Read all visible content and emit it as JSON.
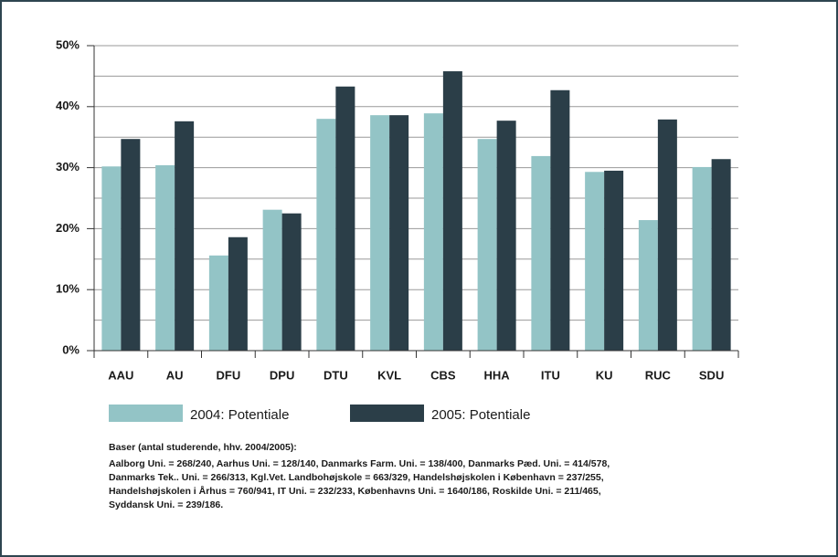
{
  "chart_data": {
    "type": "bar",
    "categories": [
      "AAU",
      "AU",
      "DFU",
      "DPU",
      "DTU",
      "KVL",
      "CBS",
      "HHA",
      "ITU",
      "KU",
      "RUC",
      "SDU"
    ],
    "series": [
      {
        "name": "2004: Potentiale",
        "color": "#93c4c6",
        "values": [
          30.2,
          30.4,
          15.6,
          23.1,
          38.0,
          38.6,
          38.9,
          34.7,
          31.9,
          29.3,
          21.4,
          30.1
        ]
      },
      {
        "name": "2005: Potentiale",
        "color": "#2b3e48",
        "values": [
          34.7,
          37.6,
          18.6,
          22.5,
          43.3,
          38.6,
          45.8,
          37.7,
          42.7,
          29.5,
          37.9,
          31.4
        ]
      }
    ],
    "ylim": [
      0,
      50
    ],
    "yticks": [
      {
        "value": 0,
        "label": "0%"
      },
      {
        "value": 10,
        "label": "10%"
      },
      {
        "value": 20,
        "label": "20%"
      },
      {
        "value": 30,
        "label": "30%"
      },
      {
        "value": 40,
        "label": "40%"
      },
      {
        "value": 50,
        "label": "50%"
      }
    ],
    "minor_grid": [
      5,
      15,
      25,
      35,
      45
    ],
    "grid": true,
    "notes": [
      "Baser (antal studerende, hhv. 2004/2005):",
      "Aalborg Uni. = 268/240, Aarhus Uni. = 128/140, Danmarks Farm. Uni. = 138/400, Danmarks Pæd. Uni. = 414/578,",
      "Danmarks Tek.. Uni. = 266/313, Kgl.Vet. Landbohøjskole = 663/329, Handelshøjskolen i København = 237/255,",
      "Handelshøjskolen i Århus = 760/941, IT Uni. = 232/233, Københavns Uni. = 1640/186, Roskilde Uni. = 211/465,",
      "Syddansk Uni. = 239/186."
    ]
  }
}
